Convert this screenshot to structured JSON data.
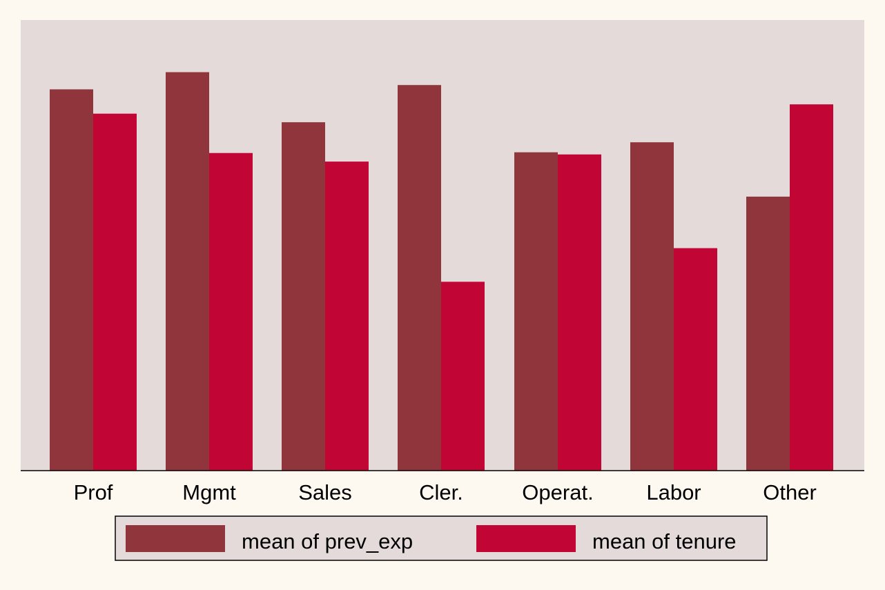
{
  "chart_data": {
    "type": "bar",
    "categories": [
      "Prof",
      "Mgmt",
      "Sales",
      "Cler.",
      "Operat.",
      "Labor",
      "Other"
    ],
    "series": [
      {
        "name": "mean of prev_exp",
        "color": "#90353b",
        "values": [
          5.33,
          5.57,
          4.87,
          5.39,
          4.45,
          4.59,
          3.83
        ]
      },
      {
        "name": "mean of tenure",
        "color": "#c10534",
        "values": [
          4.99,
          4.44,
          4.32,
          2.64,
          4.42,
          3.11,
          5.12
        ]
      }
    ],
    "ylim": [
      0,
      6
    ],
    "y_axis_shown": false,
    "grid": false,
    "legend_position": "bottom",
    "colors": {
      "page_background": "#fdf9f0",
      "plot_background": "#e4dada",
      "legend_background": "#e4dada",
      "axis_line": "#000000"
    }
  }
}
